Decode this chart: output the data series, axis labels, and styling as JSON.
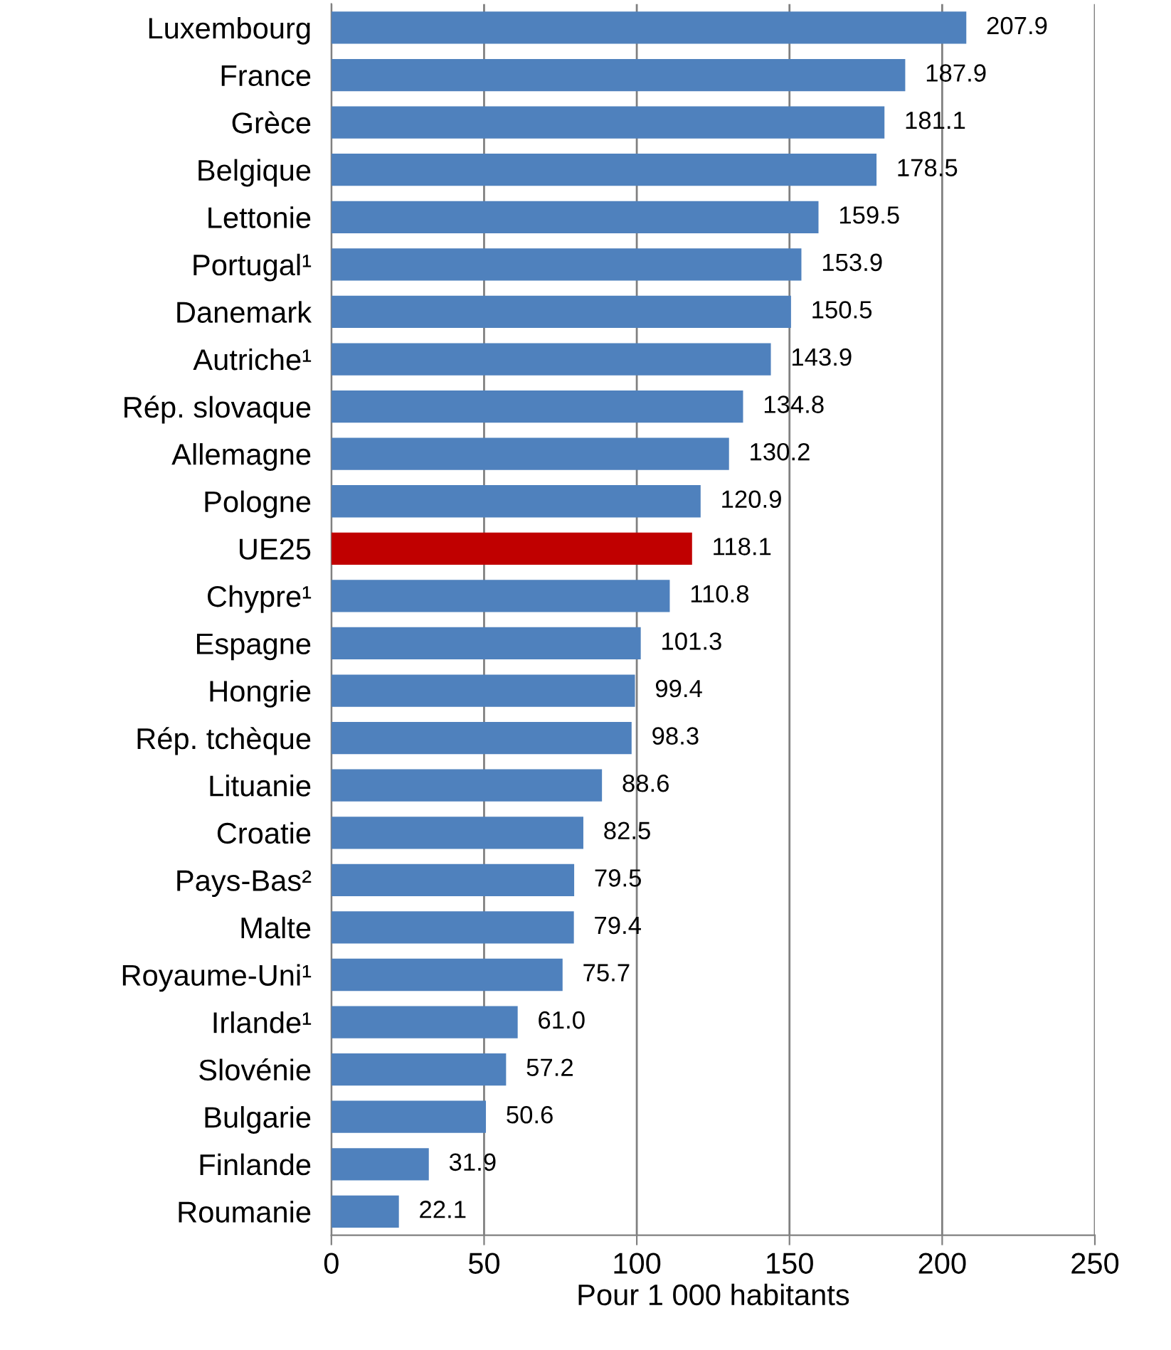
{
  "chart_data": {
    "type": "bar",
    "orientation": "horizontal",
    "xlabel": "Pour 1 000 habitants",
    "categories": [
      "Luxembourg",
      "France",
      "Grèce",
      "Belgique",
      "Lettonie",
      "Portugal¹",
      "Danemark",
      "Autriche¹",
      "Rép. slovaque",
      "Allemagne",
      "Pologne",
      "UE25",
      "Chypre¹",
      "Espagne",
      "Hongrie",
      "Rép. tchèque",
      "Lituanie",
      "Croatie",
      "Pays-Bas²",
      "Malte",
      "Royaume-Uni¹",
      "Irlande¹",
      "Slovénie",
      "Bulgarie",
      "Finlande",
      "Roumanie"
    ],
    "values": [
      207.9,
      187.9,
      181.1,
      178.5,
      159.5,
      153.9,
      150.5,
      143.9,
      134.8,
      130.2,
      120.9,
      118.1,
      110.8,
      101.3,
      99.4,
      98.3,
      88.6,
      82.5,
      79.5,
      79.4,
      75.7,
      61.0,
      57.2,
      50.6,
      31.9,
      22.1
    ],
    "value_labels": [
      "207.9",
      "187.9",
      "181.1",
      "178.5",
      "159.5",
      "153.9",
      "150.5",
      "143.9",
      "134.8",
      "130.2",
      "120.9",
      "118.1",
      "110.8",
      "101.3",
      "99.4",
      "98.3",
      "88.6",
      "82.5",
      "79.5",
      "79.4",
      "75.7",
      "61.0",
      "57.2",
      "50.6",
      "31.9",
      "22.1"
    ],
    "colors": [
      "#4f81bd",
      "#4f81bd",
      "#4f81bd",
      "#4f81bd",
      "#4f81bd",
      "#4f81bd",
      "#4f81bd",
      "#4f81bd",
      "#4f81bd",
      "#4f81bd",
      "#4f81bd",
      "#c00000",
      "#4f81bd",
      "#4f81bd",
      "#4f81bd",
      "#4f81bd",
      "#4f81bd",
      "#4f81bd",
      "#4f81bd",
      "#4f81bd",
      "#4f81bd",
      "#4f81bd",
      "#4f81bd",
      "#4f81bd",
      "#4f81bd",
      "#4f81bd"
    ],
    "xlim": [
      0,
      250
    ],
    "xticks": [
      0,
      50,
      100,
      150,
      200,
      250
    ],
    "grid": "x"
  }
}
